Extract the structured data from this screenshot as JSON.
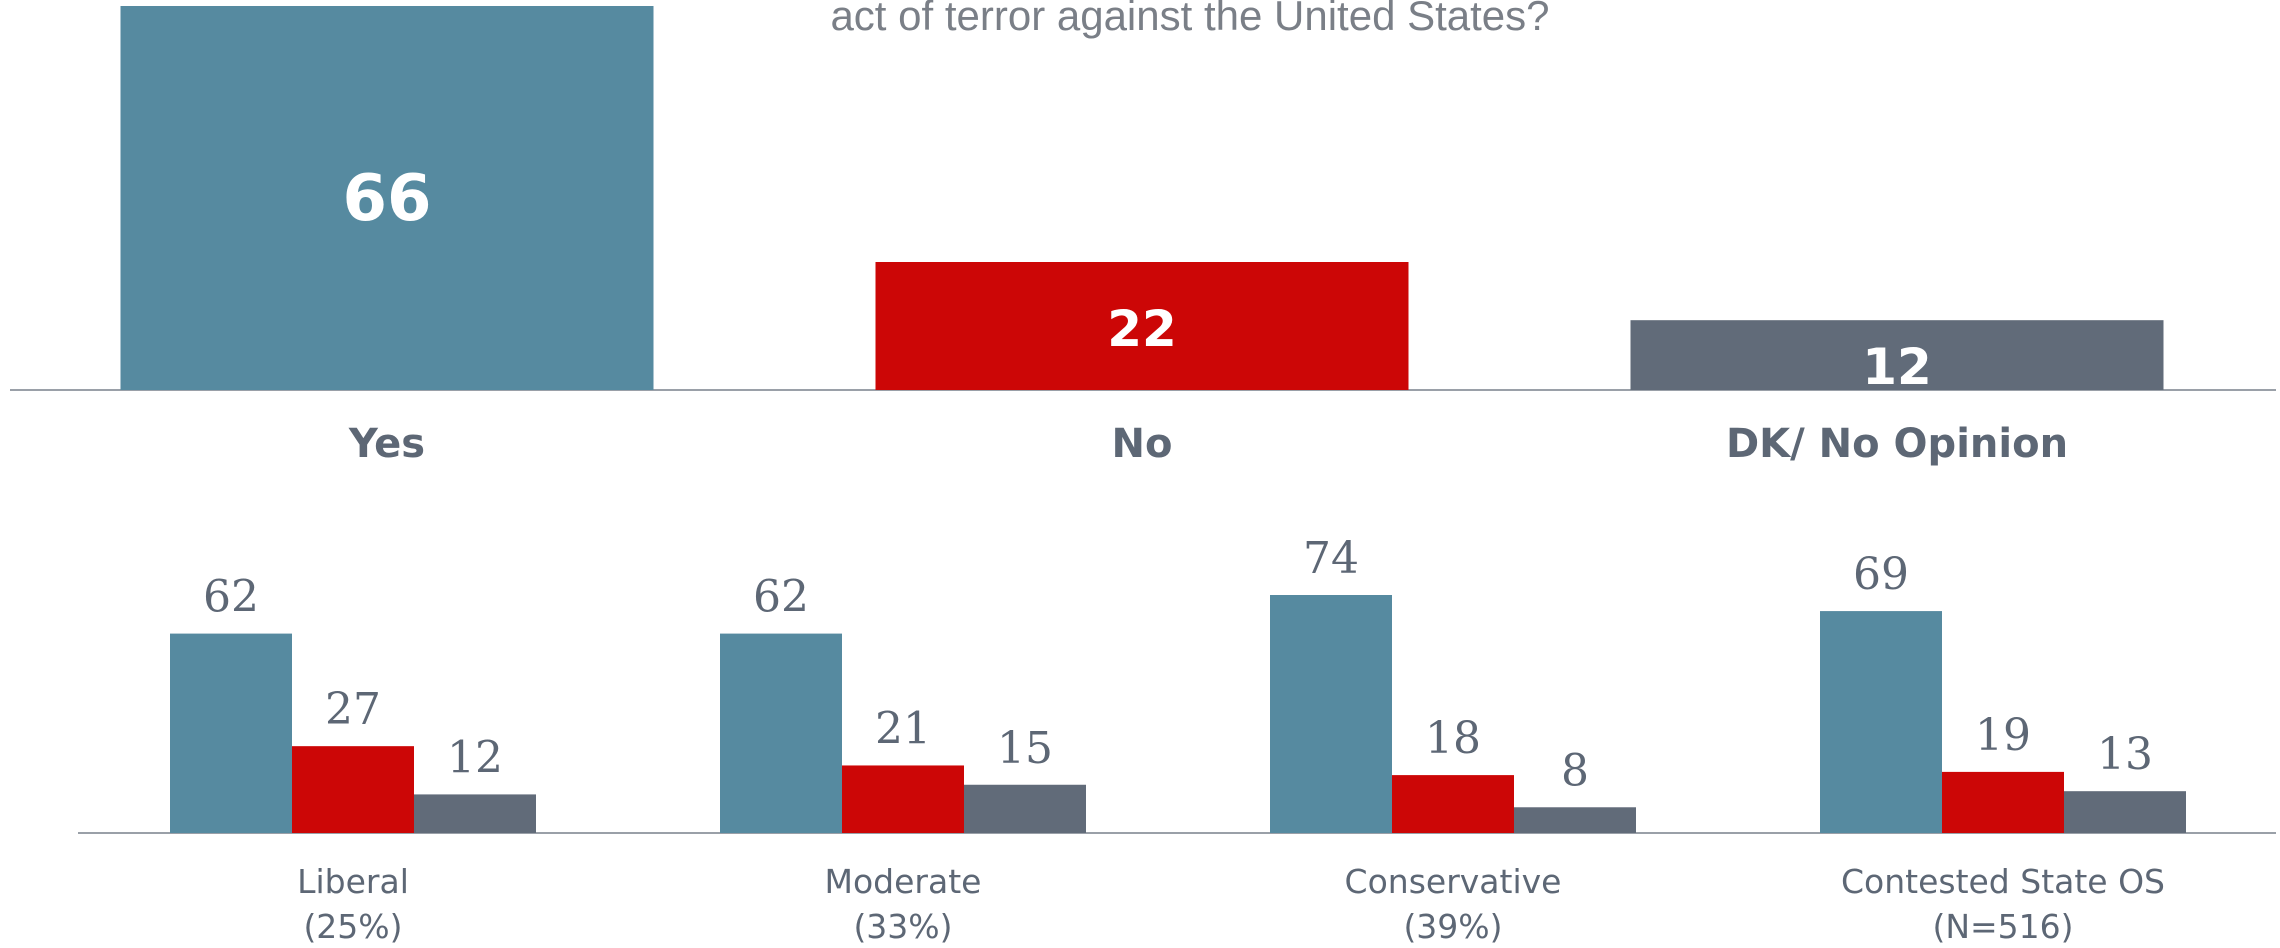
{
  "question": {
    "text": "act of terror against the United States?"
  },
  "colors": {
    "yes": "#568aa0",
    "no": "#cc0606",
    "dk": "#616b79",
    "text": "#5d6775",
    "axis": "#9aa0a8"
  },
  "chart_data": [
    {
      "type": "bar",
      "title": "",
      "categories": [
        "Yes",
        "No",
        "DK/ No Opinion"
      ],
      "values": [
        66,
        22,
        12
      ],
      "ylim": [
        0,
        66
      ],
      "grid": false
    },
    {
      "type": "bar",
      "title": "",
      "categories": [
        {
          "name": "Liberal",
          "sub": "(25%)"
        },
        {
          "name": "Moderate",
          "sub": "(33%)"
        },
        {
          "name": "Conservative",
          "sub": "(39%)"
        },
        {
          "name": "Contested State OS",
          "sub": "(N=516)"
        }
      ],
      "series": [
        {
          "values": [
            62,
            62,
            74,
            69
          ]
        },
        {
          "values": [
            27,
            21,
            18,
            19
          ]
        },
        {
          "values": [
            12,
            15,
            8,
            13
          ]
        }
      ],
      "ylim": [
        0,
        74
      ],
      "grid": false
    }
  ]
}
